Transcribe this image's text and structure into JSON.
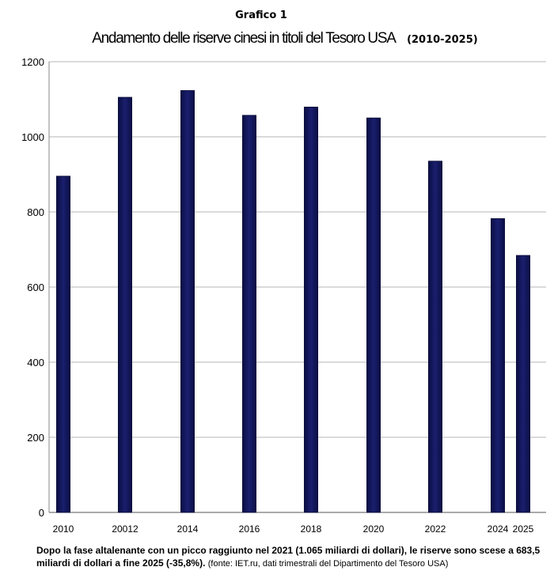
{
  "header": {
    "kicker": "Grafico 1",
    "title": "Andamento delle riserve cinesi in titoli del Tesoro USA",
    "range": "(2010-2025)"
  },
  "chart_data": {
    "type": "bar",
    "categories": [
      "2010",
      "20012",
      "2014",
      "2016",
      "2018",
      "2020",
      "2022",
      "2024",
      "2025"
    ],
    "values": [
      895,
      1105,
      1123,
      1057,
      1079,
      1050,
      935,
      782,
      684
    ],
    "ylim": [
      0,
      1200
    ],
    "yticks": [
      0,
      200,
      400,
      600,
      800,
      1000,
      1200
    ],
    "grid": true,
    "bar_color": "#1a1f6e",
    "grid_color": "#b5b5b5",
    "legend": "none"
  },
  "caption": {
    "main": "Dopo la fase altalenante con un picco raggiunto nel 2021 (1.065 miliardi di dollari), le riserve sono scese a 683,5 miliardi di dollari a fine 2025 (-35,8%).",
    "source": "(fonte: IET.ru, dati trimestrali del Dipartimento del Tesoro USA)"
  }
}
